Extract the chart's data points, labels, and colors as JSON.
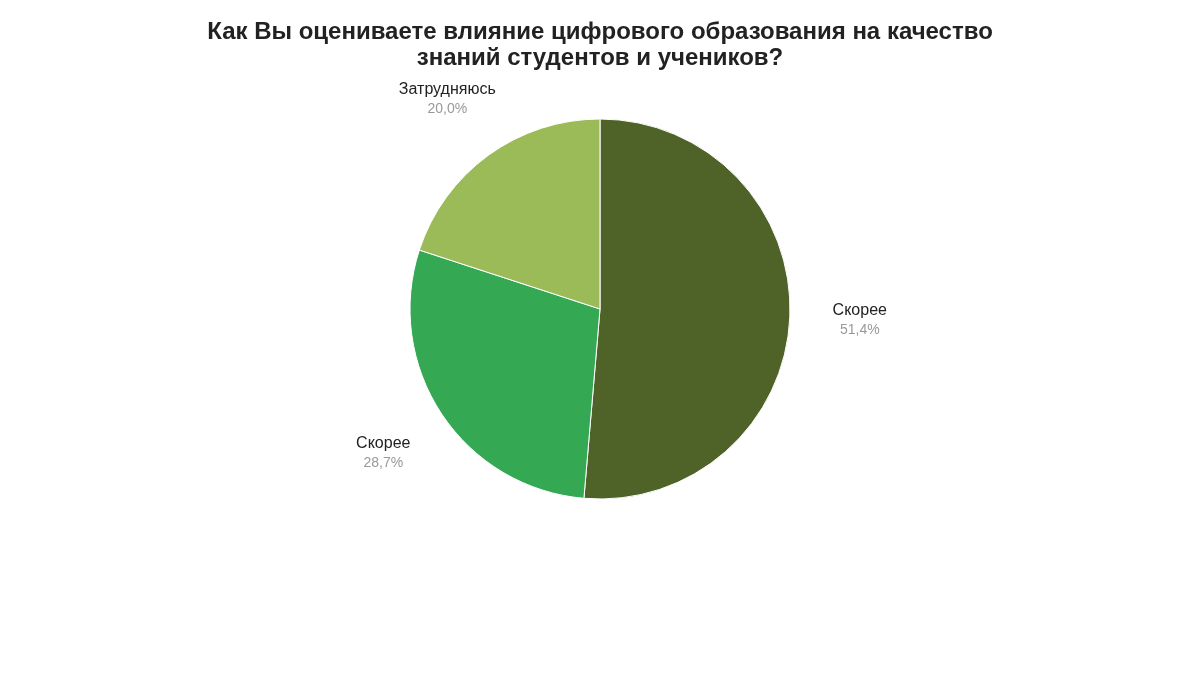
{
  "chart_data": {
    "type": "pie",
    "title": "Как Вы оцениваете влияние цифрового образования на качество знаний студентов и учеников?",
    "categories": [
      "Скорее",
      "Скорее",
      "Затрудняюсь"
    ],
    "values": [
      51.4,
      28.7,
      20.0
    ],
    "value_labels": [
      "51,4%",
      "28,7%",
      "20,0%"
    ],
    "colors": [
      "#4f6228",
      "#34a853",
      "#9bbb59"
    ],
    "legend": false
  }
}
